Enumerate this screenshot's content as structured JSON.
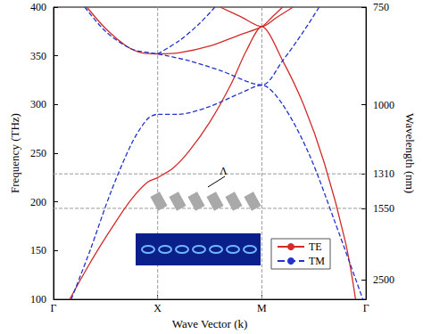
{
  "chart_data": {
    "type": "line",
    "xlabel": "Wave Vector (k)",
    "ylabel": "Frequency (THz)",
    "y2label": "Wavelength (nm)",
    "xlim": [
      0,
      3
    ],
    "xticks": [
      {
        "value": 0,
        "label": "Γ"
      },
      {
        "value": 1,
        "label": "X"
      },
      {
        "value": 2,
        "label": "M"
      },
      {
        "value": 3,
        "label": "Γ"
      }
    ],
    "ylim": [
      100,
      400
    ],
    "yticks": [
      100,
      150,
      200,
      250,
      300,
      350,
      400
    ],
    "y2lim": [
      2997.9,
      749.5
    ],
    "y2ticks": [
      750,
      1000,
      1310,
      1550,
      2500
    ],
    "reference_lines": {
      "x": [
        1,
        2
      ],
      "y2": [
        1310,
        1550
      ]
    },
    "legend": "lower right",
    "grid": false,
    "annotation": "Λ",
    "series": [
      {
        "name": "TE",
        "color": "#d42a2a",
        "line_style": "solid",
        "bands": [
          [
            [
              0.155,
              100
            ],
            [
              0.3,
              128
            ],
            [
              0.45,
              155
            ],
            [
              0.6,
              180
            ],
            [
              0.75,
              203
            ],
            [
              0.9,
              220
            ],
            [
              1,
              225
            ],
            [
              1.15,
              235
            ],
            [
              1.3,
              252
            ],
            [
              1.5,
              282
            ],
            [
              1.7,
              320
            ],
            [
              1.85,
              355
            ],
            [
              2,
              380
            ],
            [
              2.2,
              345
            ],
            [
              2.4,
              300
            ],
            [
              2.6,
              240
            ],
            [
              2.8,
              160
            ],
            [
              2.9,
              100
            ]
          ],
          [
            [
              0.32,
              400
            ],
            [
              0.5,
              378
            ],
            [
              0.7,
              360
            ],
            [
              0.85,
              353
            ],
            [
              1,
              352
            ],
            [
              1.2,
              353
            ],
            [
              1.5,
              360
            ],
            [
              1.8,
              372
            ],
            [
              2,
              380
            ],
            [
              2.1,
              390
            ],
            [
              2.2,
              400
            ]
          ],
          [
            [
              1.6,
              400
            ],
            [
              1.8,
              390
            ],
            [
              2,
              380
            ],
            [
              2.15,
              390
            ],
            [
              2.3,
              400
            ]
          ]
        ]
      },
      {
        "name": "TM",
        "color": "#2233cc",
        "line_style": "dashed",
        "bands": [
          [
            [
              0.17,
              100
            ],
            [
              0.35,
              150
            ],
            [
              0.55,
              210
            ],
            [
              0.75,
              260
            ],
            [
              0.9,
              285
            ],
            [
              1,
              290
            ],
            [
              1.2,
              290
            ],
            [
              1.5,
              298
            ],
            [
              1.8,
              312
            ],
            [
              2,
              320
            ],
            [
              2.2,
              300
            ],
            [
              2.45,
              250
            ],
            [
              2.7,
              180
            ],
            [
              2.97,
              100
            ]
          ],
          [
            [
              0.3,
              400
            ],
            [
              0.5,
              375
            ],
            [
              0.75,
              357
            ],
            [
              1,
              352
            ],
            [
              1.3,
              345
            ],
            [
              1.6,
              335
            ],
            [
              2,
              320
            ],
            [
              2.2,
              345
            ],
            [
              2.4,
              375
            ],
            [
              2.55,
              400
            ]
          ],
          [
            [
              1,
              352
            ],
            [
              1.2,
              365
            ],
            [
              1.4,
              383
            ],
            [
              1.55,
              400
            ]
          ]
        ]
      }
    ]
  }
}
